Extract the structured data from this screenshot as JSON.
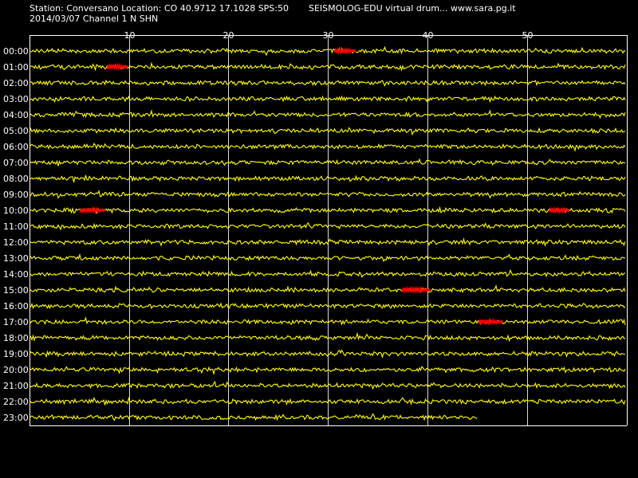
{
  "header": {
    "station_info": "Station: Conversano Location: CO 40.9712 17.1028 SPS:50",
    "brand": "SEISMOLOG-EDU virtual drum... www.sara.pg.it",
    "date_channel": "2014/03/07  Channel 1 N SHN"
  },
  "drum": {
    "minute_ticks": [
      "10",
      "20",
      "30",
      "40",
      "50"
    ],
    "hours": [
      "00:00",
      "01:00",
      "02:00",
      "03:00",
      "04:00",
      "05:00",
      "06:00",
      "07:00",
      "08:00",
      "09:00",
      "10:00",
      "11:00",
      "12:00",
      "13:00",
      "14:00",
      "15:00",
      "16:00",
      "17:00",
      "18:00",
      "19:00",
      "20:00",
      "21:00",
      "22:00",
      "23:00"
    ],
    "last_row_end_minute": 45.0,
    "colors": {
      "background": "#000000",
      "trace": "#ffff00",
      "event": "#ff0000",
      "grid": "#ffffff",
      "text": "#ffffff"
    },
    "events": [
      {
        "hour": 0,
        "start_minute": 30.7,
        "end_minute": 32.8
      },
      {
        "hour": 1,
        "start_minute": 7.8,
        "end_minute": 9.9
      },
      {
        "hour": 10,
        "start_minute": 5.1,
        "end_minute": 7.6
      },
      {
        "hour": 10,
        "start_minute": 52.3,
        "end_minute": 54.3
      },
      {
        "hour": 15,
        "start_minute": 37.5,
        "end_minute": 40.3
      },
      {
        "hour": 17,
        "start_minute": 45.2,
        "end_minute": 47.6
      }
    ]
  }
}
